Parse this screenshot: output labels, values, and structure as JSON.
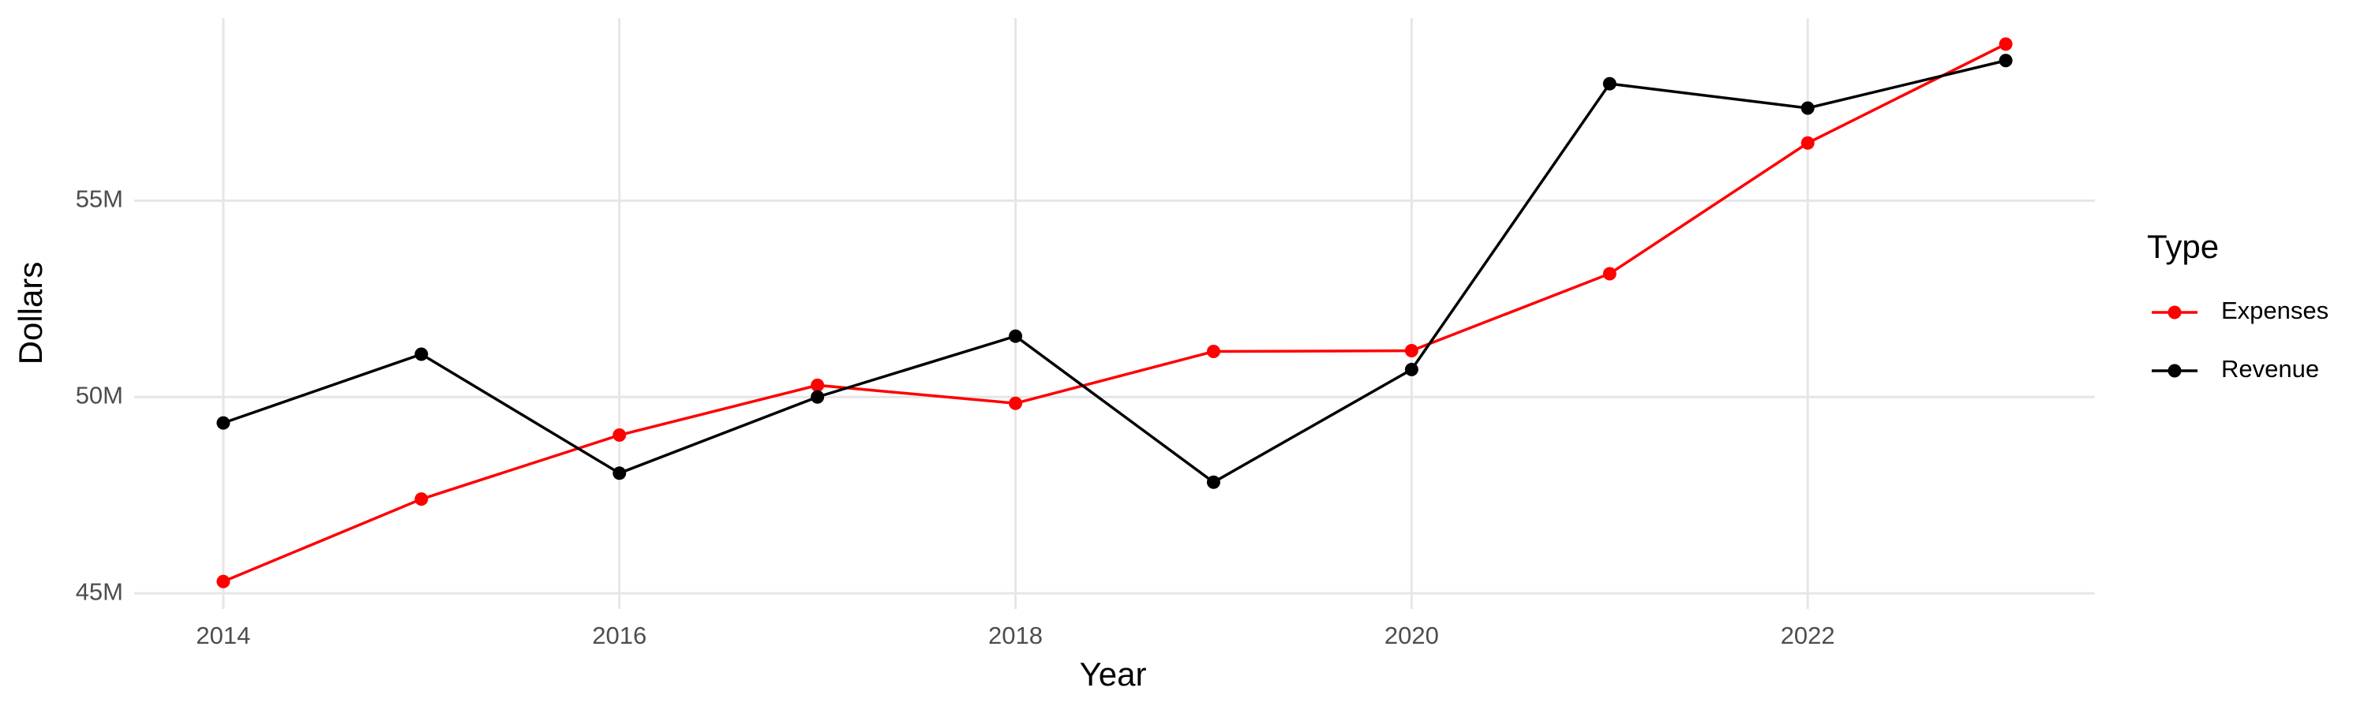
{
  "chart_data": {
    "type": "line",
    "x_label": "Year",
    "y_label": "Dollars",
    "legend_title": "Type",
    "x": [
      2014,
      2015,
      2016,
      2017,
      2018,
      2019,
      2020,
      2021,
      2022,
      2023
    ],
    "series": [
      {
        "name": "Expenses",
        "color": "#ff0000",
        "values": [
          45300000,
          47400000,
          49030000,
          50300000,
          49840000,
          51160000,
          51180000,
          53140000,
          56470000,
          58990000
        ]
      },
      {
        "name": "Revenue",
        "color": "#000000",
        "values": [
          49340000,
          51090000,
          48060000,
          50000000,
          51550000,
          47830000,
          50700000,
          57980000,
          57360000,
          58570000
        ]
      }
    ],
    "xlim": [
      2013.55,
      2023.45
    ],
    "xticks": [
      2014,
      2016,
      2018,
      2020,
      2022
    ],
    "ylim": [
      44600000,
      59650000
    ],
    "yticks": [
      {
        "value": 45000000,
        "label": "45M"
      },
      {
        "value": 50000000,
        "label": "50M"
      },
      {
        "value": 55000000,
        "label": "55M"
      }
    ],
    "grid": true,
    "legend": "right"
  }
}
